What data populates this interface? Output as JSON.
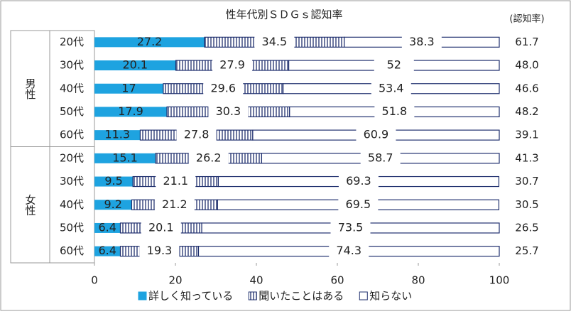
{
  "chart_data": {
    "type": "stacked-bar-horizontal",
    "title": "性年代別ＳＤＧｓ認知率",
    "rate_header": "(認知率)",
    "groups": [
      {
        "name": "男性",
        "size": 5
      },
      {
        "name": "女性",
        "size": 5
      }
    ],
    "categories": [
      "20代",
      "30代",
      "40代",
      "50代",
      "60代",
      "20代",
      "30代",
      "40代",
      "50代",
      "60代"
    ],
    "series": [
      {
        "name": "詳しく知っている",
        "color": "#1ea3e0",
        "values": [
          27.2,
          20.1,
          17,
          17.9,
          11.3,
          15.1,
          9.5,
          9.2,
          6.4,
          6.4
        ]
      },
      {
        "name": "聞いたことはある",
        "color": "#1f2f6e",
        "values": [
          34.5,
          27.9,
          29.6,
          30.3,
          27.8,
          26.2,
          21.1,
          21.2,
          20.1,
          19.3
        ]
      },
      {
        "name": "知らない",
        "color": "#1f2f6e",
        "values": [
          38.3,
          52,
          53.4,
          51.8,
          60.9,
          58.7,
          69.3,
          69.5,
          73.5,
          74.3
        ]
      }
    ],
    "rates": [
      "61.7",
      "48.0",
      "46.6",
      "48.2",
      "39.1",
      "41.3",
      "30.7",
      "30.5",
      "26.5",
      "25.7"
    ],
    "xlim": [
      0,
      100
    ],
    "xticks": [
      0,
      20,
      40,
      60,
      80,
      100
    ]
  }
}
